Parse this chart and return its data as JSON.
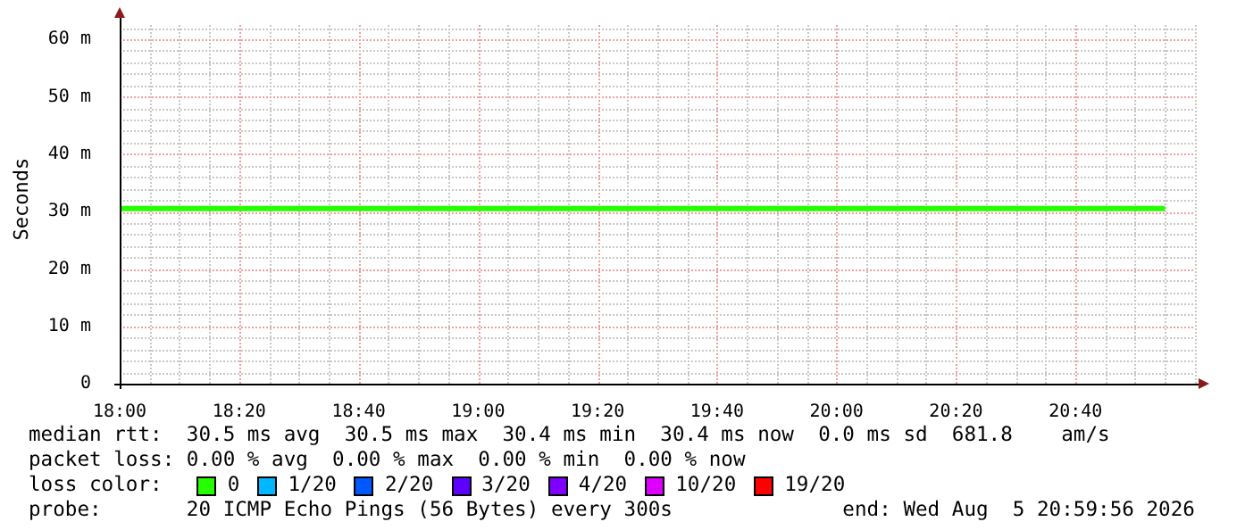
{
  "chart_data": {
    "type": "line",
    "ylabel": "Seconds",
    "x": [
      18,
      20.9167
    ],
    "xlim": [
      18,
      21
    ],
    "xticks": [
      {
        "value": 18,
        "label": "18:00"
      },
      {
        "value": 18.3333,
        "label": "18:20"
      },
      {
        "value": 18.6667,
        "label": "18:40"
      },
      {
        "value": 19,
        "label": "19:00"
      },
      {
        "value": 19.3333,
        "label": "19:20"
      },
      {
        "value": 19.6667,
        "label": "19:40"
      },
      {
        "value": 20,
        "label": "20:00"
      },
      {
        "value": 20.3333,
        "label": "20:20"
      },
      {
        "value": 20.6667,
        "label": "20:40"
      }
    ],
    "ylim": [
      0,
      62.5
    ],
    "yticks": [
      {
        "value": 0,
        "label": "0"
      },
      {
        "value": 10,
        "label": "10 m"
      },
      {
        "value": 20,
        "label": "20 m"
      },
      {
        "value": 30,
        "label": "30 m"
      },
      {
        "value": 40,
        "label": "40 m"
      },
      {
        "value": 50,
        "label": "50 m"
      },
      {
        "value": 60,
        "label": "60 m"
      }
    ],
    "grid": true,
    "legend": "bottom",
    "legend_title": "loss color:",
    "marker": "none",
    "series": [
      {
        "name": "0",
        "color": "#26ff00",
        "values": [
          30.5,
          30.5
        ]
      },
      {
        "name": "1/20",
        "color": "#00b8ff",
        "values": [
          null,
          null
        ]
      },
      {
        "name": "2/20",
        "color": "#0059ff",
        "values": [
          null,
          null
        ]
      },
      {
        "name": "3/20",
        "color": "#5e00ff",
        "values": [
          null,
          null
        ]
      },
      {
        "name": "4/20",
        "color": "#7e00ff",
        "values": [
          null,
          null
        ]
      },
      {
        "name": "10/20",
        "color": "#dd00ff",
        "values": [
          null,
          null
        ]
      },
      {
        "name": "19/20",
        "color": "#ff0000",
        "values": [
          null,
          null
        ]
      }
    ],
    "annotations": [
      "median rtt:  30.5 ms avg  30.5 ms max  30.4 ms min  30.4 ms now  0.0 ms sd  681.8    am/s",
      "packet loss: 0.00 % avg  0.00 % max  0.00 % min  0.00 % now",
      "probe:       20 ICMP Echo Pings (56 Bytes) every 300s              end: Wed Aug  5 20:59:56 2026"
    ]
  }
}
